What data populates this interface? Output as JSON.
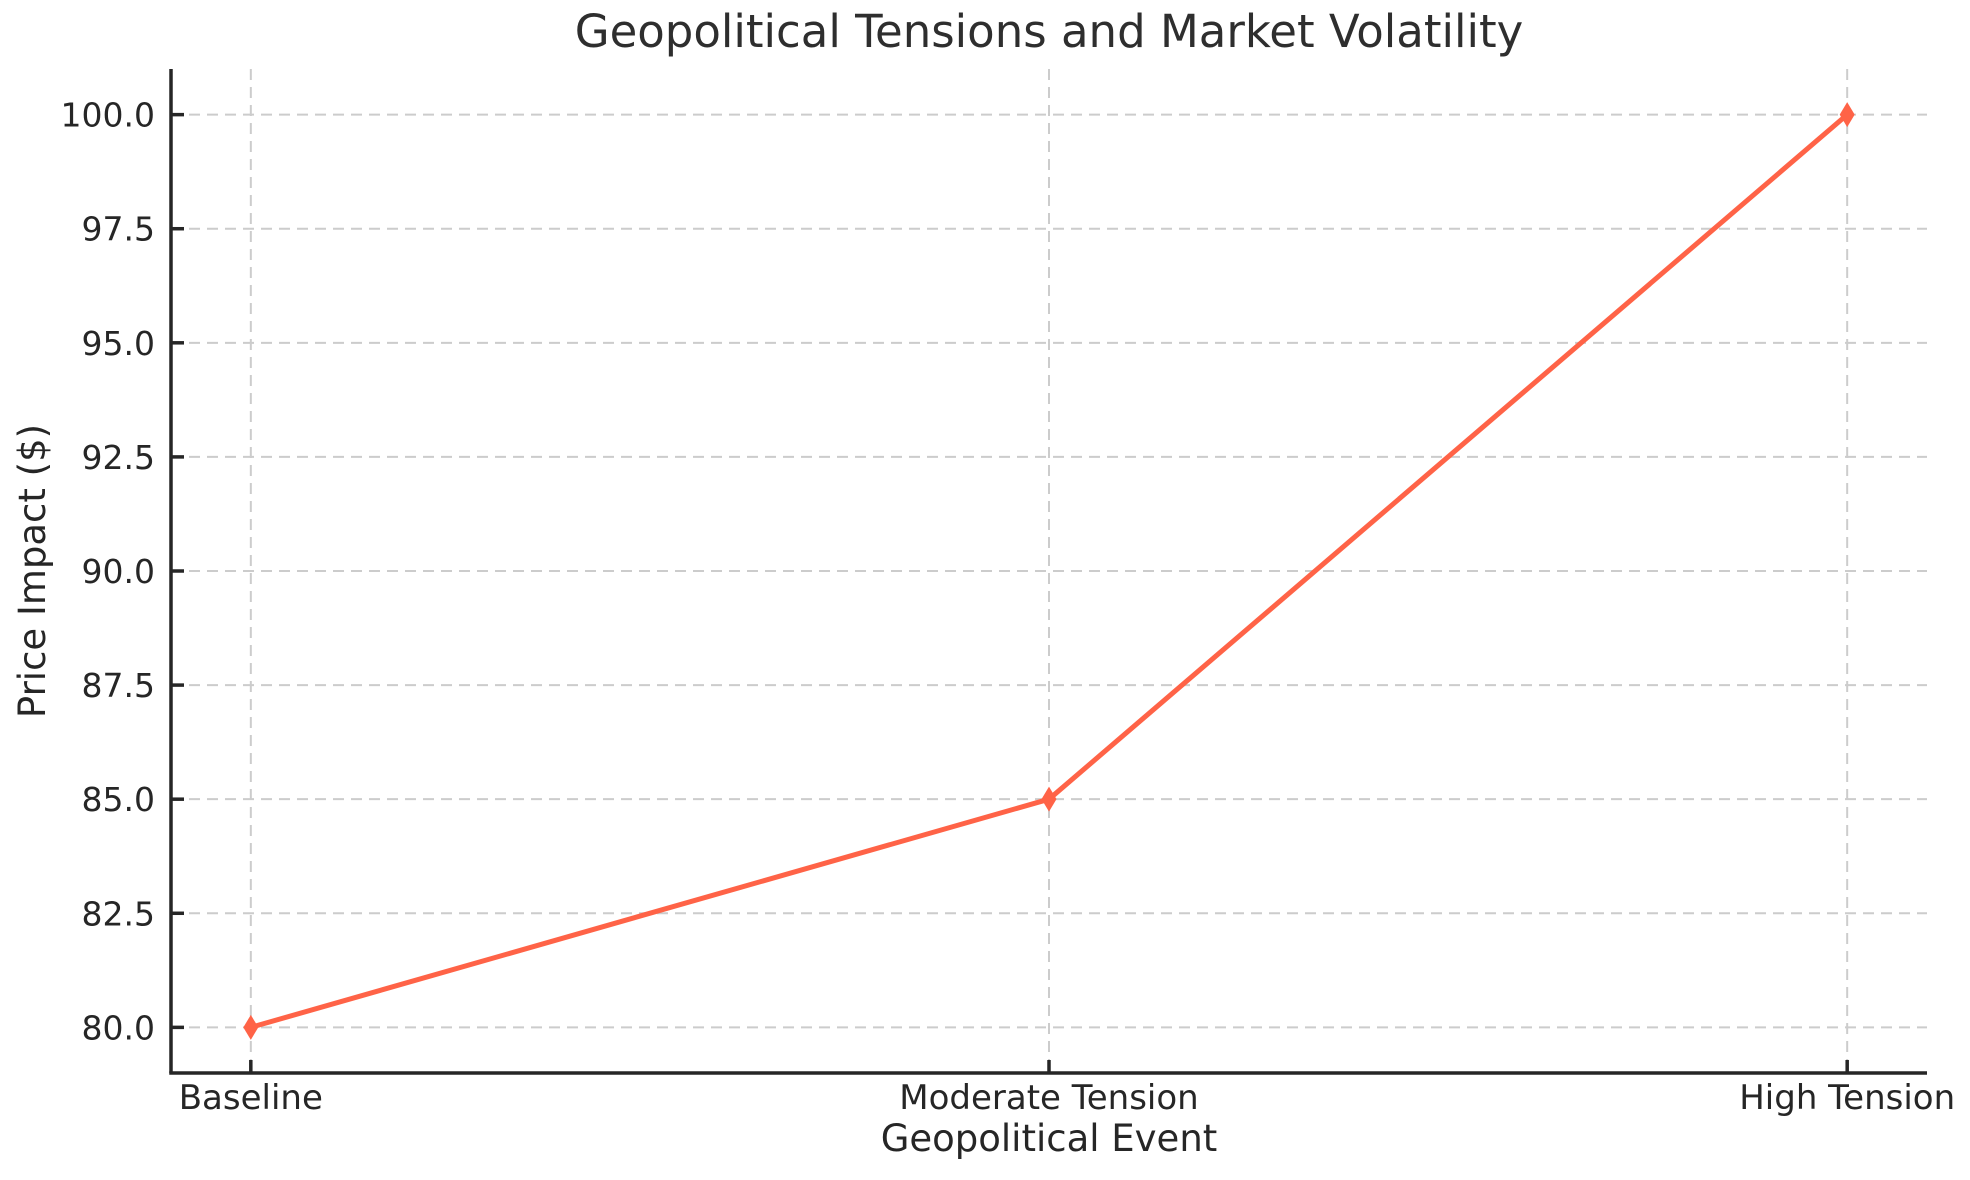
{
  "page": {
    "background": "#ffffff"
  },
  "chart_data": {
    "type": "line",
    "title": "Geopolitical Tensions and Market Volatility",
    "xlabel": "Geopolitical Event",
    "ylabel": "Price Impact ($)",
    "categories": [
      "Baseline",
      "Moderate Tension",
      "High Tension"
    ],
    "series": [
      {
        "name": "Price Impact",
        "values": [
          80.0,
          85.0,
          100.0
        ]
      }
    ],
    "yticks": [
      80.0,
      82.5,
      85.0,
      87.5,
      90.0,
      92.5,
      95.0,
      97.5,
      100.0
    ],
    "ytick_labels": [
      "80.0",
      "82.5",
      "85.0",
      "87.5",
      "90.0",
      "92.5",
      "95.0",
      "97.5",
      "100.0"
    ],
    "ylim": [
      79.0,
      101.0
    ],
    "xlim": [
      -0.1,
      2.1
    ],
    "grid": true,
    "grid_style": "dashed",
    "legend": "none",
    "marker": "thin-diamond",
    "colors": {
      "line": "#FF6347",
      "marker": "#FF6347",
      "grid": "#cccccc",
      "spine": "#262626",
      "tick": "#262626",
      "text": "#262626",
      "background": "#ffffff"
    }
  }
}
